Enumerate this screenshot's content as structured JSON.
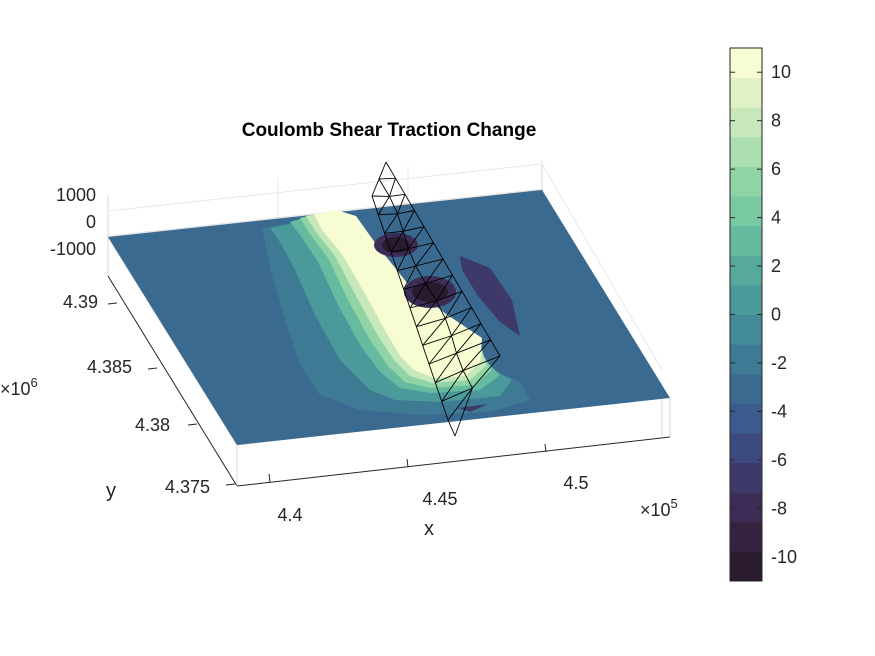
{
  "chart_data": {
    "type": "heatmap",
    "title": "Coulomb Shear Traction Change",
    "xlabel": "x",
    "ylabel": "y",
    "x_ticks": [
      "4.4",
      "4.45",
      "4.5"
    ],
    "x_exponent_label": "×10",
    "x_exponent_power": "5",
    "y_ticks": [
      "4.375",
      "4.38",
      "4.385",
      "4.39"
    ],
    "y_exponent_label": "×10",
    "y_exponent_power": "6",
    "z_ticks": [
      "-1000",
      "0",
      "1000"
    ],
    "colorbar": {
      "min": -11,
      "max": 11,
      "tick_values": [
        -10,
        -8,
        -6,
        -4,
        -2,
        0,
        2,
        4,
        6,
        8,
        10
      ],
      "tick_labels": [
        "-10",
        "-8",
        "-6",
        "-4",
        "-2",
        "0",
        "2",
        "4",
        "6",
        "8",
        "10"
      ],
      "colors": [
        "#2a1a30",
        "#34223f",
        "#3b2d55",
        "#3d3a6a",
        "#3d4a80",
        "#3b5a8e",
        "#3b6a91",
        "#3f7a95",
        "#438a98",
        "#4a9a9b",
        "#55aa9d",
        "#65ba9f",
        "#78c8a1",
        "#90d4a6",
        "#abdfb0",
        "#c6e8bb",
        "#dff1c5",
        "#f8fcd2"
      ]
    },
    "colormap_samples": {
      "background": "#3b6a91",
      "positive_lobe": "#f8fcd2",
      "negative_lobe": "#2a1a30"
    }
  }
}
